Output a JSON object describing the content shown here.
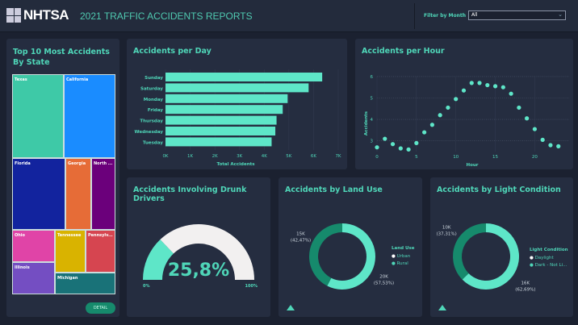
{
  "header": {
    "logo_text": "NHTSA",
    "title": "2021 TRAFFIC ACCIDENTS REPORTS",
    "filter_label": "Filter by Month",
    "filter_value": "All"
  },
  "treemap": {
    "title": "Top 10 Most Accidents By State",
    "states": [
      "Texas",
      "California",
      "Florida",
      "Georgia",
      "North ...",
      "Ohio",
      "Tennessee",
      "Pennsylv...",
      "Illinois",
      "Michigan"
    ],
    "colors": [
      "#3ec9a7",
      "#1a8cff",
      "#12239e",
      "#e66c37",
      "#6b007b",
      "#e044a7",
      "#d9b300",
      "#d64550",
      "#744ec2",
      "#197278"
    ],
    "detail_label": "DETAIL"
  },
  "chart_data": [
    {
      "type": "bar",
      "title": "Accidents per Day",
      "categories": [
        "Sunday",
        "Saturday",
        "Monday",
        "Friday",
        "Thursday",
        "Wednesday",
        "Tuesday"
      ],
      "values": [
        6350,
        5800,
        4950,
        4750,
        4500,
        4450,
        4300
      ],
      "xlabel": "Total Accidents",
      "xticks": [
        "0K",
        "1K",
        "2K",
        "3K",
        "4K",
        "5K",
        "6K",
        "7K"
      ],
      "xlim": [
        0,
        7000
      ],
      "color": "#5ee6c8"
    },
    {
      "type": "scatter",
      "title": "Accidents per Hour",
      "x": [
        0,
        1,
        2,
        3,
        4,
        5,
        6,
        7,
        8,
        9,
        10,
        11,
        12,
        13,
        14,
        15,
        16,
        17,
        18,
        19,
        20,
        21,
        22,
        23
      ],
      "y": [
        2.7,
        3.1,
        2.85,
        2.65,
        2.6,
        2.9,
        3.4,
        3.75,
        4.2,
        4.55,
        4.95,
        5.35,
        5.7,
        5.7,
        5.6,
        5.55,
        5.5,
        5.2,
        4.55,
        4.05,
        3.55,
        3.05,
        2.8,
        2.75
      ],
      "xlabel": "Hour",
      "ylabel": "Accidents",
      "xticks": [
        "0",
        "5",
        "10",
        "15",
        "20"
      ],
      "yticks": [
        "3",
        "4",
        "5",
        "6"
      ],
      "xlim": [
        0,
        24
      ],
      "ylim": [
        2.5,
        6
      ]
    },
    {
      "type": "gauge",
      "title": "Accidents Involving Drunk Drivers",
      "value": 25.8,
      "value_label": "25,8%",
      "min_label": "0%",
      "max_label": "100%"
    },
    {
      "type": "pie",
      "title": "Accidents by Land Use",
      "legend_title": "Land Use",
      "slices": [
        {
          "name": "Urban",
          "value": 57.53,
          "label": "20K",
          "pct": "(57,53%)",
          "color": "#5ee6c8"
        },
        {
          "name": "Rural",
          "value": 42.47,
          "label": "15K",
          "pct": "(42,47%)",
          "color": "#168a6c"
        }
      ]
    },
    {
      "type": "pie",
      "title": "Accidents by Light Condition",
      "legend_title": "Light Condition",
      "slices": [
        {
          "name": "Daylight",
          "value": 62.69,
          "label": "16K",
          "pct": "(62,69%)",
          "color": "#5ee6c8"
        },
        {
          "name": "Dark - Not Li...",
          "value": 37.31,
          "label": "10K",
          "pct": "(37,31%)",
          "color": "#168a6c"
        }
      ]
    }
  ]
}
